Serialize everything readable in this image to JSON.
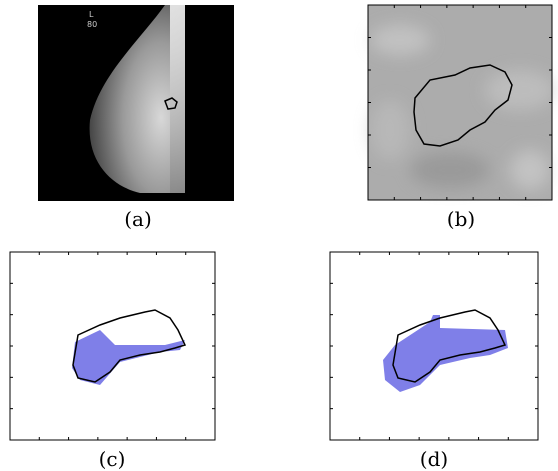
{
  "figure": {
    "panels": [
      {
        "caption": "(a)",
        "image_text": [
          "L",
          "80"
        ]
      },
      {
        "caption": "(b)"
      },
      {
        "caption": "(c)"
      },
      {
        "caption": "(d)"
      }
    ]
  }
}
